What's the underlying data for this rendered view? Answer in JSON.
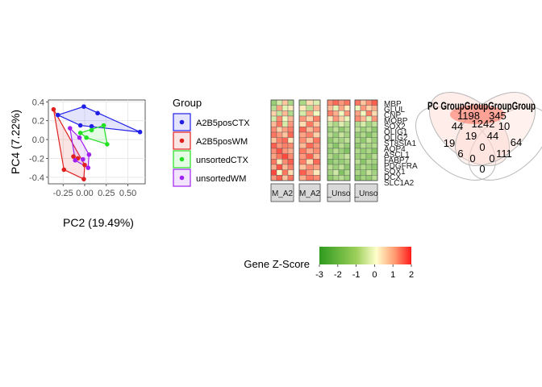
{
  "chart_data": [
    {
      "type": "scatter",
      "xlabel": "PC2 (19.49%)",
      "ylabel": "PC4 (7.22%)",
      "xlim": [
        -0.42,
        0.7
      ],
      "ylim": [
        -0.47,
        0.42
      ],
      "x_ticks": [
        -0.25,
        0.0,
        0.25,
        0.5
      ],
      "x_tick_labels": [
        "-0.25",
        "0.00",
        "0.25",
        "0.50"
      ],
      "y_ticks": [
        -0.4,
        -0.2,
        0.0,
        0.2,
        0.4
      ],
      "y_tick_labels": [
        "-0.4",
        "-0.2",
        "0.0",
        "0.2",
        "0.4"
      ],
      "grid": true,
      "legend_title": "Group",
      "legend_position": "right",
      "series": [
        {
          "name": "A2B5posCTX",
          "color": "#1f1fe6",
          "points": [
            [
              -0.31,
              0.26
            ],
            [
              -0.01,
              0.35
            ],
            [
              0.15,
              0.28
            ],
            [
              0.64,
              0.08
            ],
            [
              0.08,
              0.14
            ],
            [
              -0.05,
              0.15
            ]
          ]
        },
        {
          "name": "A2B5posWM",
          "color": "#e01f1f",
          "points": [
            [
              -0.36,
              0.32
            ],
            [
              -0.24,
              -0.32
            ],
            [
              -0.13,
              -0.18
            ],
            [
              -0.08,
              -0.2
            ],
            [
              -0.01,
              -0.42
            ],
            [
              0.0,
              -0.27
            ]
          ]
        },
        {
          "name": "unsortedCTX",
          "color": "#22e022",
          "points": [
            [
              -0.05,
              0.07
            ],
            [
              0.02,
              0.02
            ],
            [
              0.08,
              0.1
            ],
            [
              0.22,
              0.15
            ],
            [
              0.26,
              -0.05
            ]
          ]
        },
        {
          "name": "unsortedWM",
          "color": "#a020f0",
          "points": [
            [
              -0.17,
              0.12
            ],
            [
              -0.11,
              -0.22
            ],
            [
              -0.06,
              0.02
            ],
            [
              0.05,
              -0.16
            ],
            [
              0.04,
              -0.3
            ],
            [
              -0.02,
              -0.21
            ]
          ]
        }
      ]
    },
    {
      "type": "heatmap",
      "legend_title": "Gene Z-Score",
      "colorbar_ticks": [
        -3,
        -2,
        -1,
        0,
        1,
        2
      ],
      "colorbar_tick_labels": [
        "-3",
        "-2",
        "-1",
        "0",
        "1",
        "2"
      ],
      "value_range": [
        -3,
        2
      ],
      "colors": {
        "low": "#2e9a1f",
        "mid": "#ffffcc",
        "high": "#ff1a1a"
      },
      "genes": [
        "MBP",
        "GLUL",
        "CNP",
        "MOBP",
        "SOX2",
        "OLIG1",
        "OLIG2",
        "ST8SIA1",
        "AQP4",
        "ASCL1",
        "FABP7",
        "PDGFRA",
        "SOX1",
        "DCX",
        "SLC1A2"
      ],
      "panel_labels": [
        "M_A2",
        "M_A2",
        "_Unso",
        "_Unso"
      ],
      "panels": [
        [
          [
            -1.5,
            -0.6,
            0.5,
            -1.2
          ],
          [
            -1.0,
            0.8,
            -0.4,
            0.2
          ],
          [
            0.4,
            -0.8,
            0.6,
            -1.1
          ],
          [
            -0.6,
            1.0,
            -0.2,
            0.6
          ],
          [
            0.6,
            1.2,
            -0.6,
            0.9
          ],
          [
            1.0,
            0.4,
            0.8,
            1.1
          ],
          [
            1.2,
            0.9,
            0.5,
            1.3
          ],
          [
            0.5,
            1.1,
            1.3,
            0.2
          ],
          [
            1.4,
            0.9,
            1.1,
            1.0
          ],
          [
            1.0,
            1.5,
            0.9,
            0.7
          ],
          [
            0.8,
            1.2,
            1.6,
            1.0
          ],
          [
            1.2,
            0.2,
            1.0,
            1.4
          ],
          [
            0.7,
            1.5,
            0.6,
            1.1
          ],
          [
            1.6,
            -0.1,
            1.2,
            0.3
          ],
          [
            0.9,
            1.4,
            0.5,
            1.2
          ]
        ],
        [
          [
            -1.2,
            0.3,
            -0.5
          ],
          [
            0.2,
            -1.0,
            0.6
          ],
          [
            -0.6,
            0.8,
            -0.2
          ],
          [
            0.9,
            0.4,
            1.1
          ],
          [
            0.3,
            1.2,
            0.5
          ],
          [
            1.3,
            0.6,
            1.0
          ],
          [
            0.8,
            1.1,
            0.4
          ],
          [
            1.0,
            0.5,
            1.2
          ],
          [
            0.6,
            1.3,
            0.9
          ],
          [
            1.2,
            0.7,
            1.0
          ],
          [
            0.9,
            1.4,
            0.6
          ],
          [
            1.1,
            0.3,
            1.3
          ],
          [
            0.5,
            1.0,
            0.8
          ],
          [
            1.4,
            0.9,
            0.2
          ],
          [
            0.7,
            1.2,
            1.0
          ]
        ],
        [
          [
            1.0,
            1.3,
            0.9,
            1.2
          ],
          [
            0.6,
            -0.4,
            0.8,
            0.2
          ],
          [
            1.1,
            0.7,
            -0.2,
            0.9
          ],
          [
            0.2,
            0.9,
            0.4,
            -0.3
          ],
          [
            -0.8,
            -1.2,
            -0.5,
            -1.0
          ],
          [
            -1.4,
            -0.9,
            -1.6,
            -1.1
          ],
          [
            -1.0,
            -1.5,
            -0.8,
            -1.3
          ],
          [
            -1.6,
            -1.1,
            -1.3,
            -0.9
          ],
          [
            -1.2,
            -1.7,
            -1.0,
            -1.5
          ],
          [
            -1.5,
            -1.0,
            -1.4,
            -1.8
          ],
          [
            -1.1,
            -1.6,
            -1.2,
            -0.8
          ],
          [
            -1.7,
            -1.3,
            -1.5,
            -1.2
          ],
          [
            -1.0,
            -1.4,
            -0.9,
            -1.6
          ],
          [
            -1.3,
            -0.7,
            -1.8,
            -1.1
          ],
          [
            -1.6,
            -1.2,
            -1.0,
            -1.4
          ]
        ],
        [
          [
            1.2,
            0.5,
            1.0,
            1.4
          ],
          [
            -0.3,
            0.9,
            0.4,
            0.7
          ],
          [
            0.8,
            -0.2,
            1.1,
            0.3
          ],
          [
            1.0,
            0.6,
            -0.4,
            0.9
          ],
          [
            -1.1,
            -0.6,
            -1.3,
            -0.9
          ],
          [
            -0.9,
            -1.4,
            -1.0,
            -1.6
          ],
          [
            -1.5,
            -1.1,
            -1.7,
            -1.2
          ],
          [
            -1.2,
            -1.6,
            -0.9,
            -1.4
          ],
          [
            -1.6,
            -1.0,
            -1.3,
            -1.1
          ],
          [
            -1.1,
            -1.5,
            -1.2,
            -1.7
          ],
          [
            -1.4,
            -1.2,
            -1.6,
            -1.0
          ],
          [
            -1.0,
            -1.7,
            -1.1,
            -1.3
          ],
          [
            -1.5,
            -1.1,
            -1.4,
            -1.6
          ],
          [
            -1.2,
            -1.5,
            -0.8,
            -1.3
          ],
          [
            -1.7,
            -1.3,
            -1.5,
            -1.0
          ]
        ]
      ]
    },
    {
      "type": "venn",
      "header_text": "PC GroupGroupGroupGroup",
      "sets": [
        "A2B5posCTX",
        "A2B5posWM",
        "unsortedCTX",
        "unsortedWM"
      ],
      "region_labels": [
        {
          "value": "1198"
        },
        {
          "value": "345"
        },
        {
          "value": "44"
        },
        {
          "value": "1242"
        },
        {
          "value": "10"
        },
        {
          "value": "19"
        },
        {
          "value": "19"
        },
        {
          "value": "44"
        },
        {
          "value": "64"
        },
        {
          "value": "6"
        },
        {
          "value": "0"
        },
        {
          "value": "111"
        },
        {
          "value": "0"
        },
        {
          "value": "0"
        },
        {
          "value": "0"
        }
      ]
    }
  ]
}
